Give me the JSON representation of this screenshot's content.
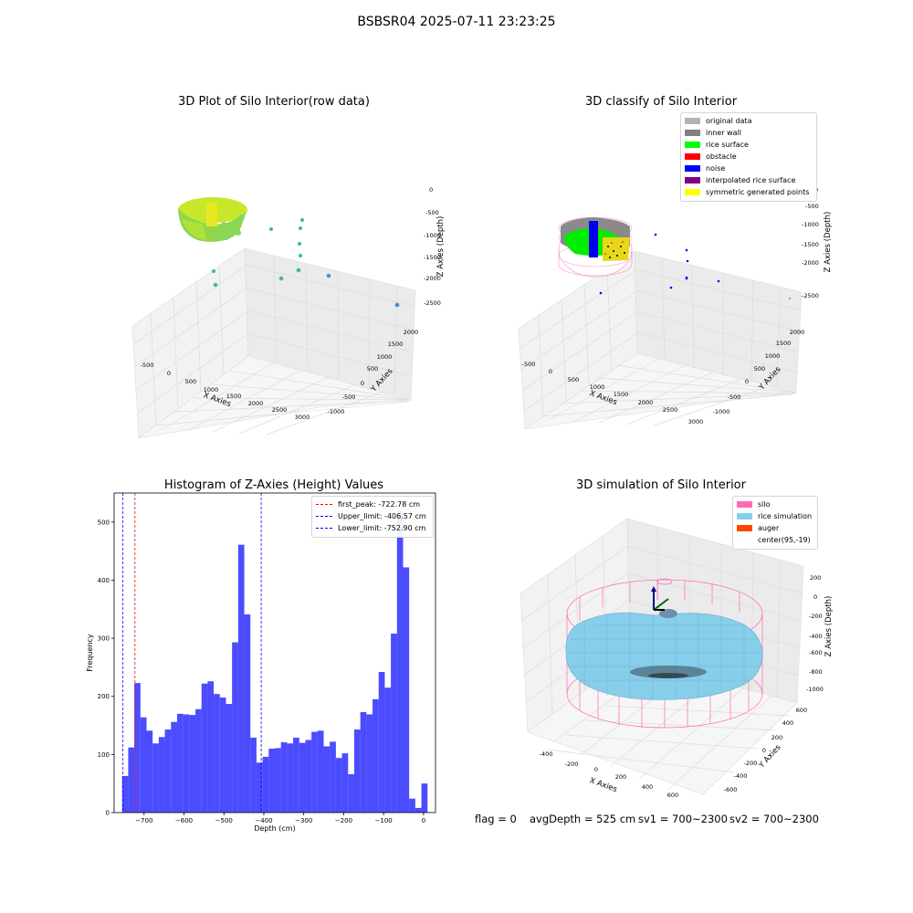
{
  "suptitle": "BSBSR04 2025-07-11 23:23:25",
  "footer": {
    "flag": "flag = 0",
    "avg_depth": "avgDepth = 525 cm",
    "sv1": "sv1 = 700~2300",
    "sv2": "sv2 = 700~2300"
  },
  "panels": {
    "raw": {
      "title": "3D Plot of Silo Interior(row data)",
      "xlabel": "X Axies",
      "ylabel": "Y Axies",
      "zlabel": "Z Axies (Depth)",
      "xticks": [
        "-500",
        "0",
        "500",
        "1000",
        "1500",
        "2000",
        "2500",
        "3000"
      ],
      "yticks": [
        "-1000",
        "-500",
        "0",
        "500",
        "1000",
        "1500",
        "2000"
      ],
      "zticks": [
        "0",
        "-500",
        "-1000",
        "-1500",
        "-2000",
        "-2500"
      ]
    },
    "classify": {
      "title": "3D classify of Silo Interior",
      "xlabel": "X Axies",
      "ylabel": "Y Axies",
      "zlabel": "Z Axies (Depth)",
      "xticks": [
        "-500",
        "0",
        "500",
        "1000",
        "1500",
        "2000",
        "2500",
        "3000"
      ],
      "yticks": [
        "-1000",
        "-500",
        "0",
        "500",
        "1000",
        "1500",
        "2000"
      ],
      "zticks": [
        "0",
        "-500",
        "-1000",
        "-1500",
        "-2000",
        "-2500"
      ],
      "legend": [
        {
          "label": "original data",
          "color": "#b3b3b3"
        },
        {
          "label": "inner wall",
          "color": "#808080"
        },
        {
          "label": "rice surface",
          "color": "#00ff00"
        },
        {
          "label": "obstacle",
          "color": "#ff0000"
        },
        {
          "label": "noise",
          "color": "#0000ff"
        },
        {
          "label": "interpolated rice surface",
          "color": "#800080"
        },
        {
          "label": "symmetric generated points",
          "color": "#ffff00"
        }
      ]
    },
    "simulation": {
      "title": "3D simulation of Silo Interior",
      "xlabel": "X Axies",
      "ylabel": "Y Axies",
      "zlabel": "Z Axies (Depth)",
      "xticks": [
        "-400",
        "-200",
        "0",
        "200",
        "400",
        "600"
      ],
      "yticks": [
        "-600",
        "-400",
        "-200",
        "0",
        "200",
        "400",
        "600"
      ],
      "zticks": [
        "200",
        "0",
        "-200",
        "-400",
        "-600",
        "-800",
        "-1000"
      ],
      "legend": [
        {
          "label": "silo",
          "color": "#ff69b4"
        },
        {
          "label": "rice simulation",
          "color": "#87ceeb"
        },
        {
          "label": "auger",
          "color": "#ff4500"
        },
        {
          "label": "center(95,-19)",
          "color": ""
        }
      ]
    }
  },
  "chart_data": {
    "type": "bar",
    "title": "Histogram of Z-Axies (Height) Values",
    "xlabel": "Depth (cm)",
    "ylabel": "Frequency",
    "xlim": [
      -775,
      30
    ],
    "ylim": [
      0,
      550
    ],
    "xticks": [
      -700,
      -600,
      -500,
      -400,
      -300,
      -200,
      -100,
      0
    ],
    "yticks": [
      0,
      100,
      200,
      300,
      400,
      500
    ],
    "bin_start": -755,
    "bin_width": 15.3,
    "values": [
      63,
      112,
      223,
      164,
      141,
      119,
      130,
      143,
      156,
      170,
      169,
      168,
      178,
      222,
      226,
      204,
      198,
      187,
      293,
      461,
      341,
      129,
      86,
      96,
      110,
      111,
      121,
      119,
      129,
      120,
      125,
      139,
      141,
      114,
      122,
      94,
      102,
      66,
      143,
      173,
      169,
      195,
      242,
      215,
      308,
      519,
      422,
      24,
      8,
      50
    ],
    "bar_color": "#0000ff",
    "vlines": [
      {
        "label": "first_peak: -722.78 cm",
        "x": -722.78,
        "color": "#ff0000"
      },
      {
        "label": "Upper_limit: -406.57 cm",
        "x": -406.57,
        "color": "#0000ff"
      },
      {
        "label": "Lower_limit: -752.90 cm",
        "x": -752.9,
        "color": "#0000ff"
      }
    ],
    "legend_position": "top-right",
    "grid": false
  }
}
